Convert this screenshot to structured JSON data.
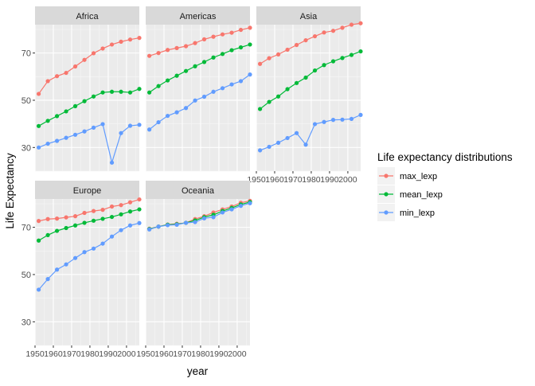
{
  "chart_data": {
    "type": "line",
    "layout": "faceted small multiples, 3 columns",
    "xlabel": "year",
    "ylabel": "Life Expectancy",
    "xlim": [
      1950,
      2007
    ],
    "ylim": [
      20,
      82
    ],
    "x_ticks": [
      1950,
      1960,
      1970,
      1980,
      1990,
      2000
    ],
    "y_ticks": [
      30,
      50,
      70
    ],
    "grid": true,
    "legend": {
      "title": "Life expectancy distributions",
      "position": "right",
      "entries": [
        {
          "name": "max_lexp",
          "color": "#F8766D"
        },
        {
          "name": "mean_lexp",
          "color": "#00BA38"
        },
        {
          "name": "min_lexp",
          "color": "#619CFF"
        }
      ]
    },
    "x": [
      1952,
      1957,
      1962,
      1967,
      1972,
      1977,
      1982,
      1987,
      1992,
      1997,
      2002,
      2007
    ],
    "facets": [
      {
        "name": "Africa",
        "series": [
          {
            "name": "max_lexp",
            "values": [
              52.7,
              58.1,
              60.2,
              61.6,
              64.3,
              67.1,
              69.9,
              71.9,
              73.6,
              74.8,
              75.7,
              76.4
            ]
          },
          {
            "name": "mean_lexp",
            "values": [
              39.1,
              41.3,
              43.3,
              45.3,
              47.5,
              49.6,
              51.6,
              53.3,
              53.6,
              53.6,
              53.3,
              54.8
            ]
          },
          {
            "name": "min_lexp",
            "values": [
              30.0,
              31.6,
              32.8,
              34.1,
              35.4,
              36.8,
              38.4,
              39.9,
              23.6,
              36.1,
              39.2,
              39.6
            ]
          }
        ]
      },
      {
        "name": "Americas",
        "series": [
          {
            "name": "max_lexp",
            "values": [
              68.8,
              70.0,
              71.3,
              72.1,
              72.9,
              74.2,
              75.8,
              76.9,
              77.9,
              78.6,
              79.8,
              80.7
            ]
          },
          {
            "name": "mean_lexp",
            "values": [
              53.3,
              56.0,
              58.4,
              60.4,
              62.4,
              64.4,
              66.2,
              68.1,
              69.6,
              71.2,
              72.4,
              73.6
            ]
          },
          {
            "name": "min_lexp",
            "values": [
              37.6,
              40.7,
              43.4,
              44.9,
              46.7,
              49.9,
              51.5,
              53.6,
              55.1,
              56.7,
              58.1,
              60.9
            ]
          }
        ]
      },
      {
        "name": "Asia",
        "series": [
          {
            "name": "max_lexp",
            "values": [
              65.4,
              67.8,
              69.4,
              71.4,
              73.4,
              75.4,
              77.1,
              78.7,
              79.4,
              80.7,
              82.0,
              82.6
            ]
          },
          {
            "name": "mean_lexp",
            "values": [
              46.3,
              49.3,
              51.6,
              54.7,
              57.3,
              59.6,
              62.6,
              64.9,
              66.5,
              67.9,
              69.2,
              70.7
            ]
          },
          {
            "name": "min_lexp",
            "values": [
              28.8,
              30.3,
              32.0,
              34.0,
              36.1,
              31.2,
              39.9,
              40.8,
              41.7,
              41.8,
              42.1,
              43.8
            ]
          }
        ]
      },
      {
        "name": "Europe",
        "series": [
          {
            "name": "max_lexp",
            "values": [
              72.7,
              73.5,
              73.7,
              74.2,
              74.7,
              76.1,
              76.9,
              77.4,
              78.8,
              79.4,
              80.6,
              81.8
            ]
          },
          {
            "name": "mean_lexp",
            "values": [
              64.4,
              66.7,
              68.5,
              69.7,
              70.8,
              71.9,
              72.8,
              73.6,
              74.4,
              75.5,
              76.7,
              77.6
            ]
          },
          {
            "name": "min_lexp",
            "values": [
              43.6,
              48.1,
              52.1,
              54.3,
              57.0,
              59.5,
              61.0,
              63.1,
              66.1,
              68.8,
              70.8,
              71.8
            ]
          }
        ]
      },
      {
        "name": "Oceania",
        "series": [
          {
            "name": "max_lexp",
            "values": [
              69.4,
              70.3,
              71.2,
              71.5,
              71.9,
              73.5,
              74.7,
              76.3,
              77.6,
              78.8,
              80.4,
              81.2
            ]
          },
          {
            "name": "mean_lexp",
            "values": [
              69.3,
              70.3,
              71.1,
              71.3,
              71.9,
              72.9,
              74.3,
              75.3,
              76.9,
              78.2,
              79.7,
              80.7
            ]
          },
          {
            "name": "min_lexp",
            "values": [
              69.1,
              70.3,
              70.9,
              71.1,
              71.9,
              72.2,
              73.8,
              74.3,
              76.3,
              77.6,
              79.1,
              80.2
            ]
          }
        ]
      }
    ]
  }
}
